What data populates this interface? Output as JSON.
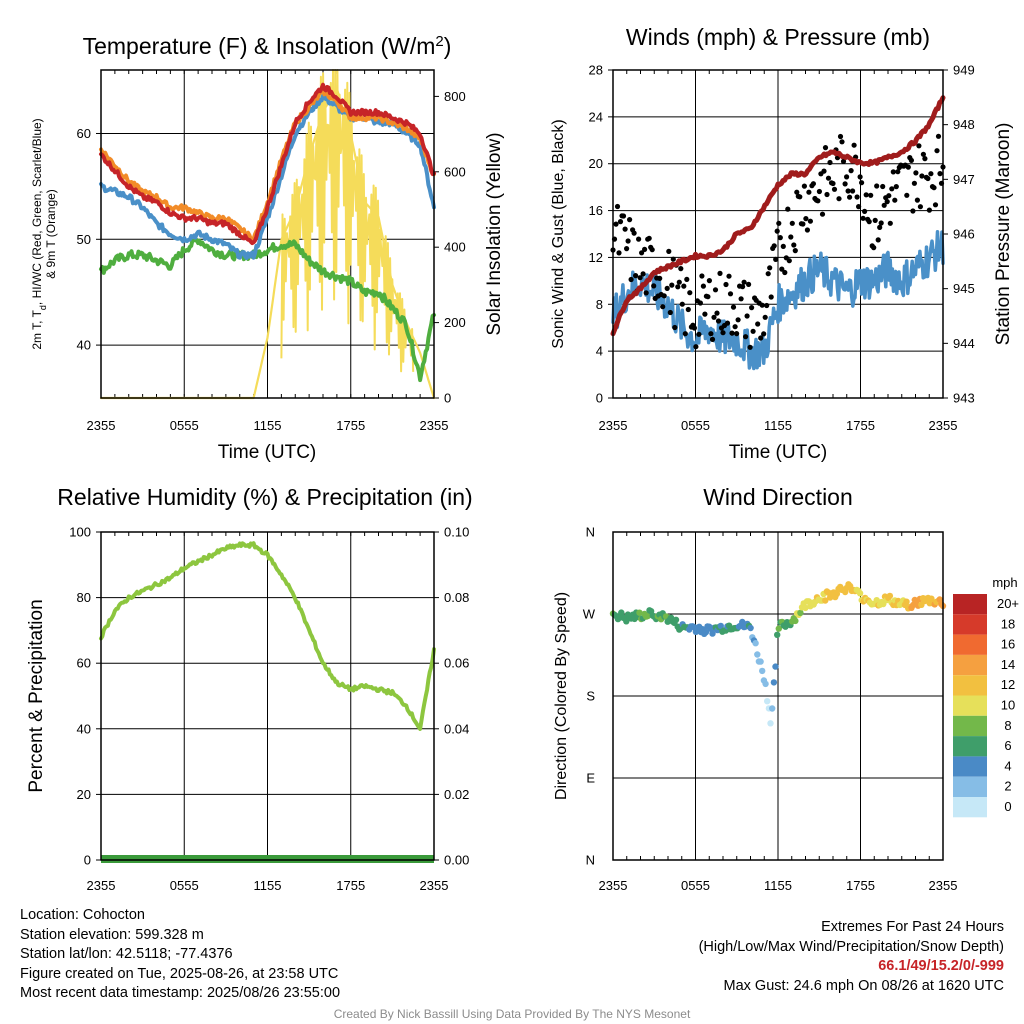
{
  "colors": {
    "red": "#c62428",
    "green": "#4fae3f",
    "orange": "#f28c28",
    "blue": "#4a90c8",
    "yellow": "#f5dc5a",
    "maroon": "#a01c1c",
    "black": "#000000",
    "rh": "#8dc63f",
    "precip": "#3a9a3a"
  },
  "x_ticks": [
    "2355",
    "0555",
    "1155",
    "1755",
    "2355"
  ],
  "panels": {
    "temp": {
      "title_pre": "Temperature (F) & Insolation (W/m",
      "title_sup": "2",
      "title_post": ")",
      "ylabel_line1": "2m T, T",
      "ylabel_sub": "d",
      "ylabel_line1_post": ", HI/WC (Red, Green, Scarlet/Blue)",
      "ylabel_line2": "& 9m T (Orange)",
      "y2label": "Solar Insolation (Yellow)",
      "xlabel": "Time (UTC)",
      "y_ticks": [
        "40",
        "50",
        "60"
      ],
      "y2_ticks": [
        "0",
        "200",
        "400",
        "600",
        "800"
      ]
    },
    "wind": {
      "title": "Winds (mph) & Pressure (mb)",
      "ylabel": "Sonic Wind & Gust (Blue, Black)",
      "y2label": "Station Pressure (Maroon)",
      "xlabel": "Time (UTC)",
      "y_ticks": [
        "0",
        "4",
        "8",
        "12",
        "16",
        "20",
        "24",
        "28"
      ],
      "y2_ticks": [
        "943",
        "944",
        "945",
        "946",
        "947",
        "948",
        "949"
      ]
    },
    "rh": {
      "title": "Relative Humidity (%) & Precipitation (in)",
      "ylabel": "Percent & Precipitation",
      "y_ticks": [
        "0",
        "20",
        "40",
        "60",
        "80",
        "100"
      ],
      "y2_ticks": [
        "0.00",
        "0.02",
        "0.04",
        "0.06",
        "0.08",
        "0.10"
      ]
    },
    "dir": {
      "title": "Wind Direction",
      "ylabel": "Direction (Colored By Speed)",
      "y_ticks": [
        "N",
        "E",
        "S",
        "W",
        "N"
      ],
      "legend_title": "mph",
      "legend_labels": [
        "0",
        "2",
        "4",
        "6",
        "8",
        "10",
        "12",
        "14",
        "16",
        "18",
        "20+"
      ],
      "legend_colors": [
        "#c6e8f7",
        "#86bde6",
        "#4a8ac6",
        "#3f9e6a",
        "#73b84a",
        "#e6e05a",
        "#f2c040",
        "#f5a040",
        "#f06a30",
        "#d63a2a",
        "#b82424",
        "#8c1818"
      ]
    }
  },
  "chart_data": [
    {
      "type": "line",
      "title": "Temperature (F) & Insolation (W/m2)",
      "xlabel": "Time (UTC)",
      "ylabel": "2m T, Td, HI/WC (Red, Green, Scarlet/Blue) & 9m T (Orange)",
      "y2label": "Solar Insolation (Yellow)",
      "x": [
        0,
        1,
        2,
        3,
        4,
        5,
        6,
        7,
        8,
        9,
        10,
        11,
        12,
        13,
        14,
        15,
        16,
        17,
        18,
        19,
        20,
        21,
        22,
        23,
        24
      ],
      "x_tick_labels": [
        "2355",
        "0555",
        "1155",
        "1755",
        "2355"
      ],
      "ylim": [
        35,
        66
      ],
      "y2lim": [
        0,
        870
      ],
      "series": [
        {
          "name": "2m T",
          "axis": "left",
          "values": [
            58,
            56.5,
            55,
            54,
            53.5,
            52.5,
            52,
            52,
            51.5,
            51.5,
            50.5,
            49.5,
            53,
            57,
            61,
            63,
            64.5,
            63.5,
            62,
            62,
            62,
            61.5,
            61,
            60,
            56
          ]
        },
        {
          "name": "9m T",
          "axis": "left",
          "values": [
            58.5,
            57,
            55.5,
            54.5,
            54,
            53,
            53,
            52.5,
            52,
            52,
            51,
            50,
            53.5,
            57.5,
            61,
            62.5,
            64,
            63,
            61.5,
            61.5,
            61.5,
            61,
            60.5,
            59.5,
            56
          ]
        },
        {
          "name": "HI/WC",
          "axis": "left",
          "values": [
            55,
            54.5,
            54,
            53,
            51.5,
            50.5,
            50,
            50.5,
            50,
            49.5,
            48.5,
            48.5,
            52,
            56,
            60,
            62,
            63.5,
            62.5,
            61.5,
            61.5,
            61,
            61,
            60,
            59,
            53
          ]
        },
        {
          "name": "Td",
          "axis": "left",
          "values": [
            47,
            48,
            48.5,
            48.5,
            48,
            47.5,
            49,
            50,
            49,
            48.5,
            48.5,
            48.5,
            49,
            49.5,
            49.5,
            48,
            47,
            46.5,
            46,
            45,
            45,
            43.5,
            42,
            37,
            43
          ]
        },
        {
          "name": "Solar Insolation",
          "axis": "right",
          "values": [
            0,
            0,
            0,
            0,
            0,
            0,
            0,
            0,
            0,
            0,
            0,
            0,
            160,
            420,
            500,
            640,
            760,
            820,
            700,
            520,
            480,
            300,
            200,
            120,
            0
          ]
        }
      ]
    },
    {
      "type": "line",
      "title": "Winds (mph) & Pressure (mb)",
      "xlabel": "Time (UTC)",
      "ylabel": "Sonic Wind & Gust (Blue, Black)",
      "y2label": "Station Pressure (Maroon)",
      "x": [
        0,
        1,
        2,
        3,
        4,
        5,
        6,
        7,
        8,
        9,
        10,
        11,
        12,
        13,
        14,
        15,
        16,
        17,
        18,
        19,
        20,
        21,
        22,
        23,
        24
      ],
      "x_tick_labels": [
        "2355",
        "0555",
        "1155",
        "1755",
        "2355"
      ],
      "ylim": [
        0,
        28
      ],
      "y2lim": [
        943,
        949
      ],
      "series": [
        {
          "name": "Sonic Wind",
          "axis": "left",
          "values": [
            7,
            9,
            10,
            9,
            8,
            6,
            5,
            6,
            5,
            5,
            4,
            4,
            8,
            9,
            10,
            11,
            10,
            9,
            10,
            10,
            11,
            10,
            11,
            12,
            13
          ]
        },
        {
          "name": "Gust",
          "axis": "left",
          "values": [
            14,
            13,
            11,
            11,
            10,
            8,
            7,
            8,
            8,
            8,
            7,
            7,
            12,
            15,
            17,
            18,
            19,
            20,
            19,
            15,
            17,
            18,
            19,
            19,
            20
          ]
        },
        {
          "name": "Station Pressure",
          "axis": "right",
          "values": [
            944.2,
            944.8,
            945.0,
            945.3,
            945.4,
            945.5,
            945.6,
            945.6,
            945.7,
            946.0,
            946.1,
            946.5,
            946.9,
            947.1,
            947.1,
            947.4,
            947.5,
            947.4,
            947.3,
            947.3,
            947.4,
            947.5,
            947.7,
            948.0,
            948.5
          ]
        }
      ]
    },
    {
      "type": "line",
      "title": "Relative Humidity (%) & Precipitation (in)",
      "ylabel": "Percent & Precipitation",
      "x": [
        0,
        1,
        2,
        3,
        4,
        5,
        6,
        7,
        8,
        9,
        10,
        11,
        12,
        13,
        14,
        15,
        16,
        17,
        18,
        19,
        20,
        21,
        22,
        23,
        24
      ],
      "x_tick_labels": [
        "2355",
        "0555",
        "1155",
        "1755",
        "2355"
      ],
      "ylim": [
        0,
        100
      ],
      "y2lim": [
        0,
        0.1
      ],
      "series": [
        {
          "name": "Relative Humidity",
          "axis": "left",
          "values": [
            68,
            76,
            80,
            82,
            84,
            86,
            89,
            91,
            93,
            95,
            96,
            96,
            93,
            87,
            80,
            70,
            60,
            54,
            52,
            53,
            52,
            51,
            47,
            40,
            64
          ]
        },
        {
          "name": "Precipitation",
          "axis": "right",
          "values": [
            0,
            0,
            0,
            0,
            0,
            0,
            0,
            0,
            0,
            0,
            0,
            0,
            0,
            0,
            0,
            0,
            0,
            0,
            0,
            0,
            0,
            0,
            0,
            0,
            0
          ]
        }
      ]
    },
    {
      "type": "scatter",
      "title": "Wind Direction",
      "ylabel": "Direction (Colored By Speed)",
      "y_tick_labels": [
        "N",
        "E",
        "S",
        "W",
        "N"
      ],
      "ylim": [
        0,
        360
      ],
      "x_tick_labels": [
        "2355",
        "0555",
        "1155",
        "1755",
        "2355"
      ],
      "x": [
        0,
        1,
        2,
        3,
        4,
        5,
        6,
        7,
        8,
        9,
        10,
        11,
        11.5,
        12,
        13,
        14,
        15,
        16,
        17,
        18,
        19,
        20,
        21,
        22,
        23,
        24
      ],
      "values": [
        270,
        265,
        268,
        270,
        265,
        255,
        255,
        252,
        255,
        258,
        255,
        200,
        150,
        255,
        262,
        280,
        288,
        292,
        300,
        290,
        282,
        286,
        280,
        282,
        285,
        282
      ],
      "speeds": [
        7,
        6,
        7,
        7,
        6,
        5,
        4,
        4,
        5,
        5,
        4,
        2,
        1,
        6,
        8,
        10,
        11,
        12,
        12,
        11,
        10,
        12,
        11,
        14,
        12,
        13
      ]
    }
  ],
  "footer": {
    "location": "Location: Cohocton",
    "elevation": "Station elevation: 599.328 m",
    "latlon": "Station lat/lon: 42.5118; -77.4376",
    "created": "Figure created on Tue, 2025-08-26, at 23:58 UTC",
    "recent": "Most recent data timestamp: 2025/08/26 23:55:00",
    "extremes_title": "Extremes For Past 24 Hours",
    "extremes_subtitle": "(High/Low/Max Wind/Precipitation/Snow Depth)",
    "extremes_values": "66.1/49/15.2/0/-999",
    "max_gust": "Max Gust: 24.6 mph On 08/26 at 1620 UTC"
  },
  "credit": "Created By Nick Bassill Using Data Provided By The NYS Mesonet"
}
